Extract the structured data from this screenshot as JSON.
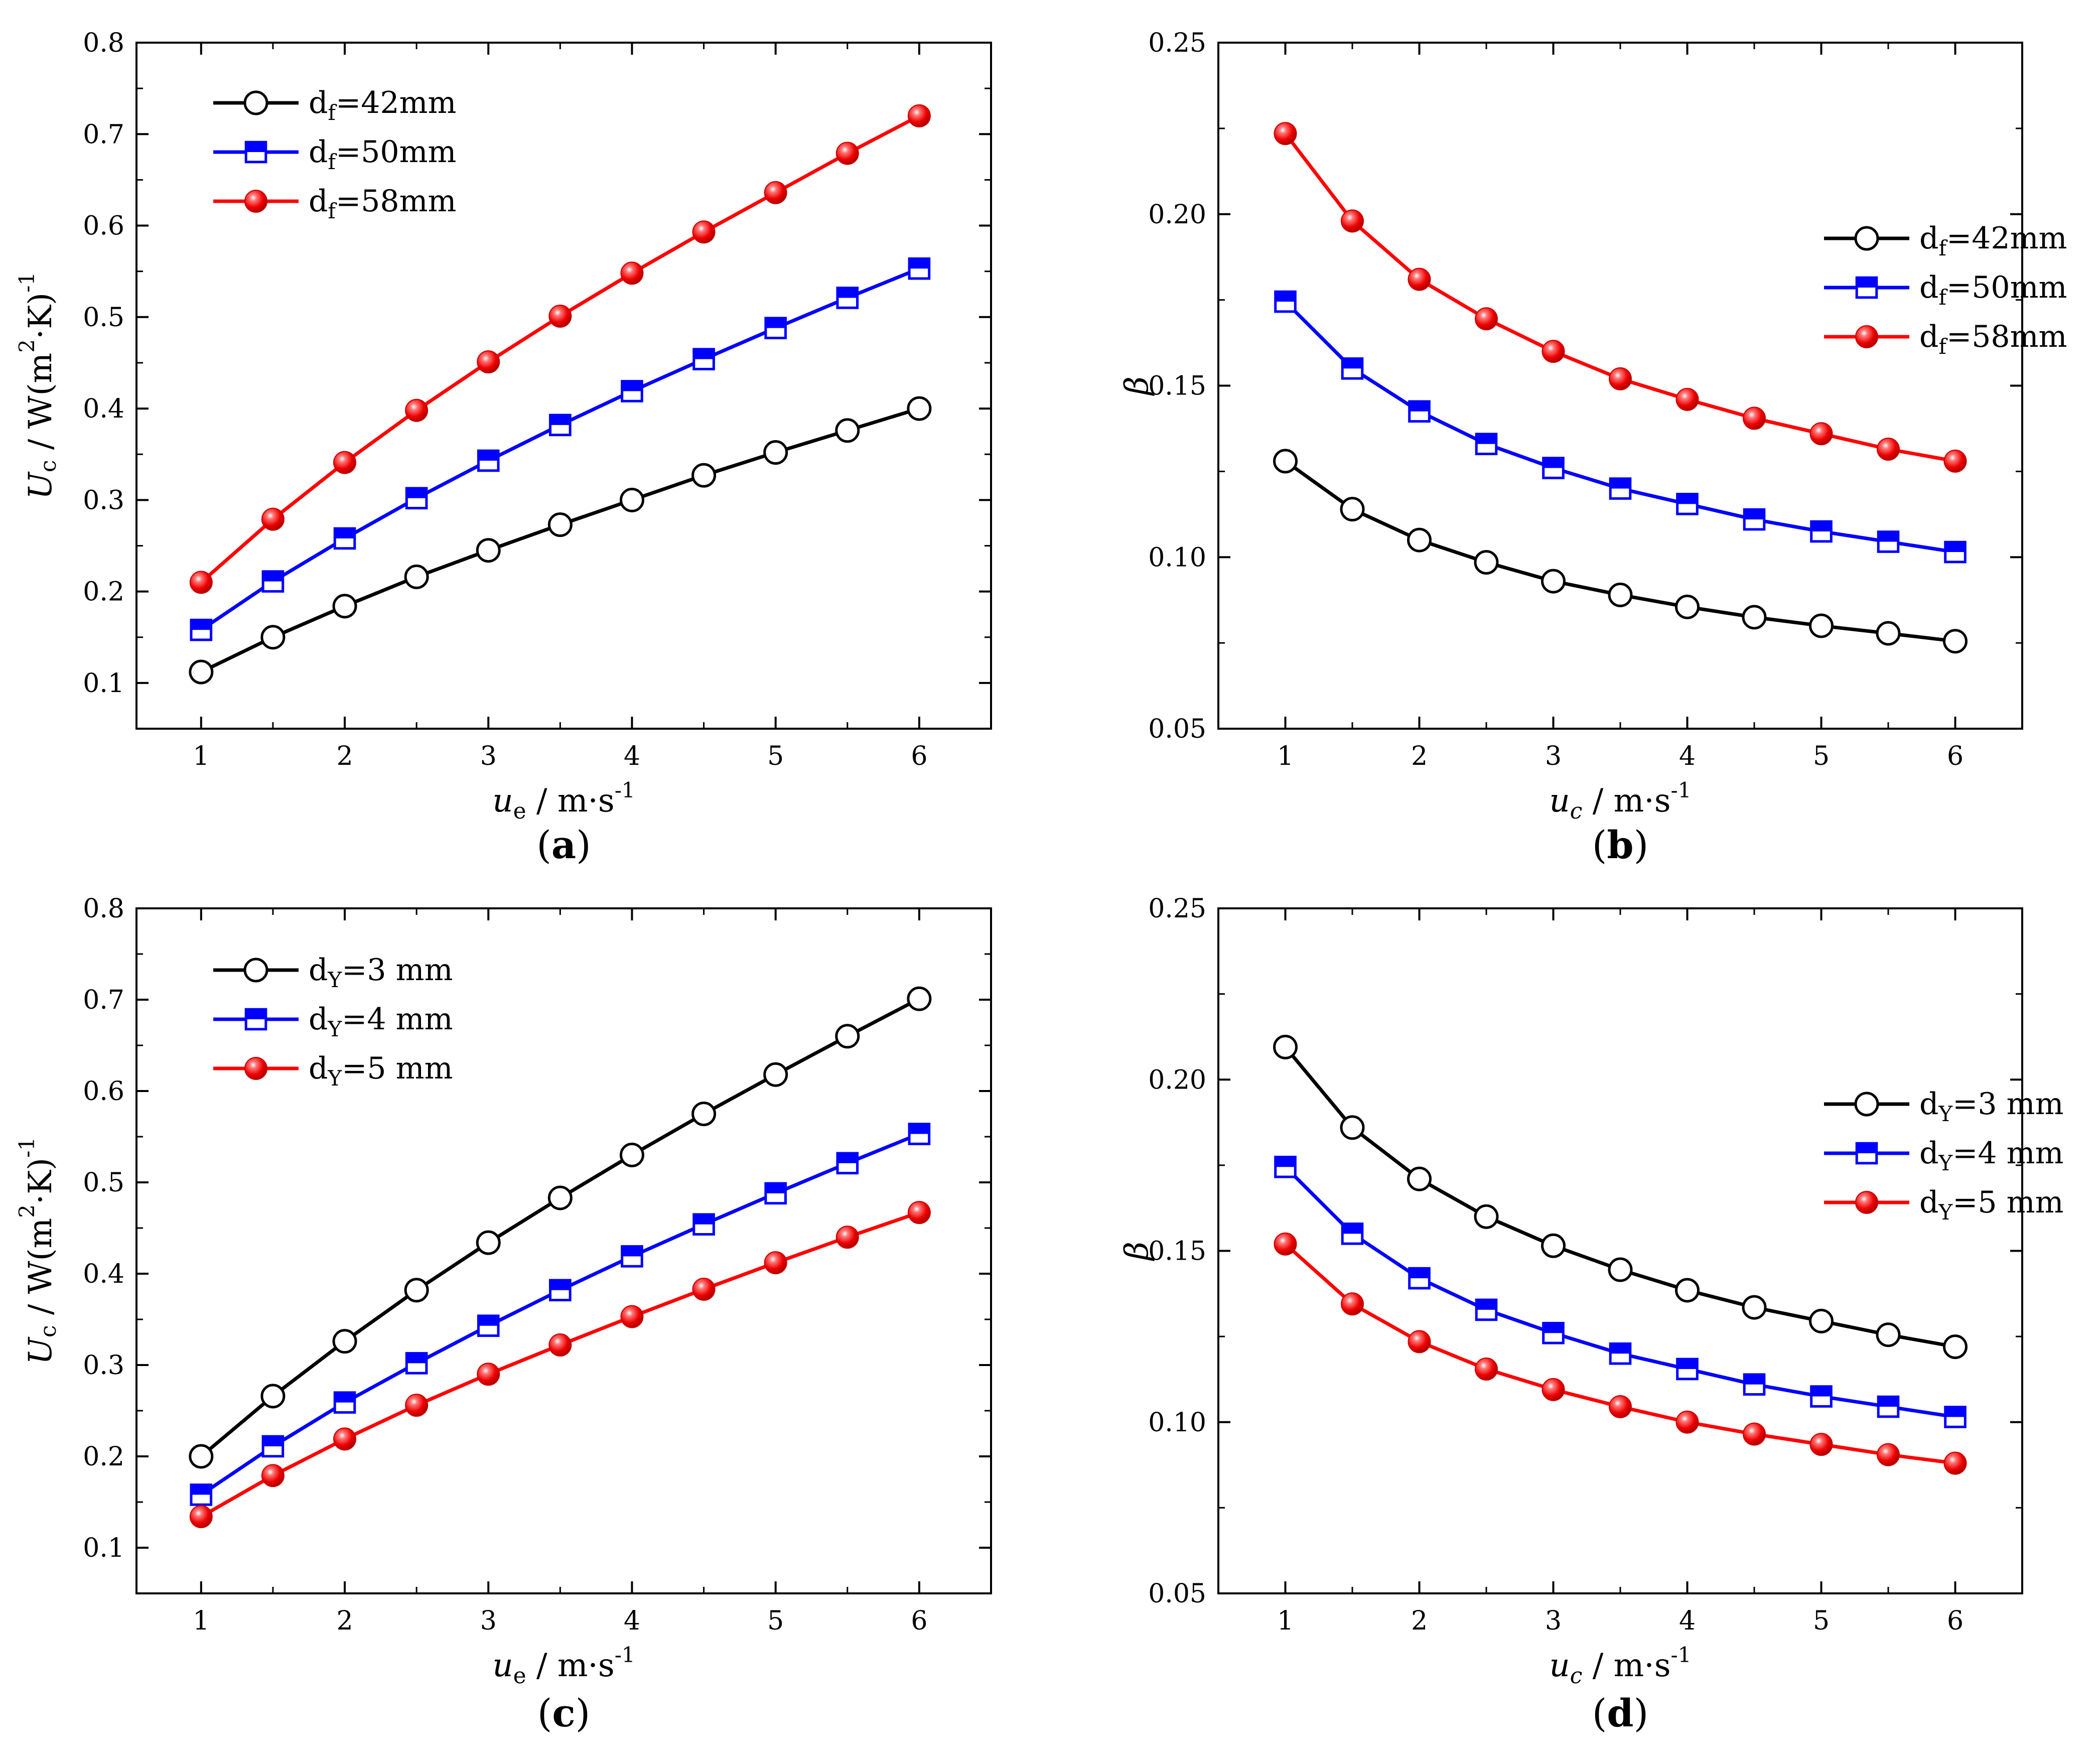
{
  "chart_data": [
    {
      "type": "line",
      "panel_label": "a",
      "x": [
        1,
        1.5,
        2,
        2.5,
        3,
        3.5,
        4,
        4.5,
        5,
        5.5,
        6
      ],
      "xlim": [
        0.55,
        6.5
      ],
      "ylim": [
        0.05,
        0.8
      ],
      "xticks": [
        "1",
        "2",
        "3",
        "4",
        "5",
        "6"
      ],
      "yticks": [
        "0.1",
        "0.2",
        "0.3",
        "0.4",
        "0.5",
        "0.6",
        "0.7",
        "0.8"
      ],
      "xlabel": {
        "var": "u",
        "sub": "e",
        "unit": " / m·s",
        "sup": "-1"
      },
      "ylabel": {
        "var": "U",
        "sub": "c",
        "unit1": " / W(m",
        "sup1": "2",
        "unit2": "·K)",
        "sup2": "-1"
      },
      "legend_position": "top-left",
      "series": [
        {
          "name_main": "d",
          "name_sub": "f",
          "name_rest": "=42mm",
          "color": "#000000",
          "marker": "open-circle",
          "values": [
            0.112,
            0.15,
            0.184,
            0.216,
            0.245,
            0.273,
            0.3,
            0.327,
            0.352,
            0.376,
            0.4
          ]
        },
        {
          "name_main": "d",
          "name_sub": "f",
          "name_rest": "=50mm",
          "color": "#0000ff",
          "marker": "half-square",
          "values": [
            0.158,
            0.211,
            0.258,
            0.302,
            0.343,
            0.382,
            0.419,
            0.454,
            0.488,
            0.521,
            0.553
          ]
        },
        {
          "name_main": "d",
          "name_sub": "f",
          "name_rest": "=58mm",
          "color": "#ff0000",
          "marker": "red-ball",
          "values": [
            0.21,
            0.279,
            0.341,
            0.398,
            0.451,
            0.501,
            0.548,
            0.593,
            0.636,
            0.679,
            0.72
          ]
        }
      ]
    },
    {
      "type": "line",
      "panel_label": "b",
      "x": [
        1,
        1.5,
        2,
        2.5,
        3,
        3.5,
        4,
        4.5,
        5,
        5.5,
        6
      ],
      "xlim": [
        0.5,
        6.5
      ],
      "ylim": [
        0.05,
        0.25
      ],
      "xticks": [
        "1",
        "2",
        "3",
        "4",
        "5",
        "6"
      ],
      "yticks": [
        "0.05",
        "0.10",
        "0.15",
        "0.20",
        "0.25"
      ],
      "xlabel": {
        "var": "u",
        "sub": "c",
        "unit": " / m·s",
        "sup": "-1"
      },
      "ylabel": {
        "var": "β"
      },
      "legend_position": "top-right",
      "series": [
        {
          "name_main": "d",
          "name_sub": "f",
          "name_rest": "=42mm",
          "color": "#000000",
          "marker": "open-circle",
          "values": [
            0.128,
            0.114,
            0.105,
            0.0985,
            0.093,
            0.089,
            0.0855,
            0.0825,
            0.08,
            0.0778,
            0.0755
          ]
        },
        {
          "name_main": "d",
          "name_sub": "f",
          "name_rest": "=50mm",
          "color": "#0000ff",
          "marker": "half-square",
          "values": [
            0.1745,
            0.155,
            0.1425,
            0.133,
            0.126,
            0.12,
            0.1155,
            0.111,
            0.1075,
            0.1045,
            0.1015
          ]
        },
        {
          "name_main": "d",
          "name_sub": "f",
          "name_rest": "=58mm",
          "color": "#ff0000",
          "marker": "red-ball",
          "values": [
            0.2235,
            0.198,
            0.181,
            0.1695,
            0.16,
            0.152,
            0.146,
            0.1405,
            0.136,
            0.1315,
            0.128
          ]
        }
      ]
    },
    {
      "type": "line",
      "panel_label": "c",
      "x": [
        1,
        1.5,
        2,
        2.5,
        3,
        3.5,
        4,
        4.5,
        5,
        5.5,
        6
      ],
      "xlim": [
        0.55,
        6.5
      ],
      "ylim": [
        0.05,
        0.8
      ],
      "xticks": [
        "1",
        "2",
        "3",
        "4",
        "5",
        "6"
      ],
      "yticks": [
        "0.1",
        "0.2",
        "0.3",
        "0.4",
        "0.5",
        "0.6",
        "0.7",
        "0.8"
      ],
      "xlabel": {
        "var": "u",
        "sub": "e",
        "unit": " / m·s",
        "sup": "-1"
      },
      "ylabel": {
        "var": "U",
        "sub": "c",
        "unit1": " / W(m",
        "sup1": "2",
        "unit2": "·K)",
        "sup2": "-1"
      },
      "legend_position": "top-left",
      "series": [
        {
          "name_main": "d",
          "name_sub": "Y",
          "name_rest": "=3 mm",
          "color": "#000000",
          "marker": "open-circle",
          "values": [
            0.2,
            0.266,
            0.326,
            0.382,
            0.434,
            0.483,
            0.53,
            0.575,
            0.618,
            0.66,
            0.701
          ]
        },
        {
          "name_main": "d",
          "name_sub": "Y",
          "name_rest": "=4 mm",
          "color": "#0000ff",
          "marker": "half-square",
          "values": [
            0.158,
            0.211,
            0.259,
            0.302,
            0.343,
            0.382,
            0.419,
            0.454,
            0.488,
            0.521,
            0.553
          ]
        },
        {
          "name_main": "d",
          "name_sub": "Y",
          "name_rest": "=5 mm",
          "color": "#ff0000",
          "marker": "red-ball",
          "values": [
            0.134,
            0.179,
            0.219,
            0.256,
            0.29,
            0.322,
            0.353,
            0.383,
            0.412,
            0.44,
            0.467
          ]
        }
      ]
    },
    {
      "type": "line",
      "panel_label": "d",
      "x": [
        1,
        1.5,
        2,
        2.5,
        3,
        3.5,
        4,
        4.5,
        5,
        5.5,
        6
      ],
      "xlim": [
        0.5,
        6.5
      ],
      "ylim": [
        0.05,
        0.25
      ],
      "xticks": [
        "1",
        "2",
        "3",
        "4",
        "5",
        "6"
      ],
      "yticks": [
        "0.05",
        "0.10",
        "0.15",
        "0.20",
        "0.25"
      ],
      "xlabel": {
        "var": "u",
        "sub": "c",
        "unit": " / m·s",
        "sup": "-1"
      },
      "ylabel": {
        "var": "β"
      },
      "legend_position": "top-right",
      "series": [
        {
          "name_main": "d",
          "name_sub": "Y",
          "name_rest": "=3 mm",
          "color": "#000000",
          "marker": "open-circle",
          "values": [
            0.2095,
            0.186,
            0.171,
            0.16,
            0.1515,
            0.1445,
            0.1385,
            0.1335,
            0.1295,
            0.1255,
            0.122
          ]
        },
        {
          "name_main": "d",
          "name_sub": "Y",
          "name_rest": "=4 mm",
          "color": "#0000ff",
          "marker": "half-square",
          "values": [
            0.1745,
            0.155,
            0.142,
            0.1328,
            0.126,
            0.12,
            0.1155,
            0.111,
            0.1075,
            0.1045,
            0.1015
          ]
        },
        {
          "name_main": "d",
          "name_sub": "Y",
          "name_rest": "=5 mm",
          "color": "#ff0000",
          "marker": "red-ball",
          "values": [
            0.152,
            0.1345,
            0.1235,
            0.1155,
            0.1095,
            0.1045,
            0.1,
            0.0965,
            0.0935,
            0.0905,
            0.088
          ]
        }
      ]
    }
  ]
}
